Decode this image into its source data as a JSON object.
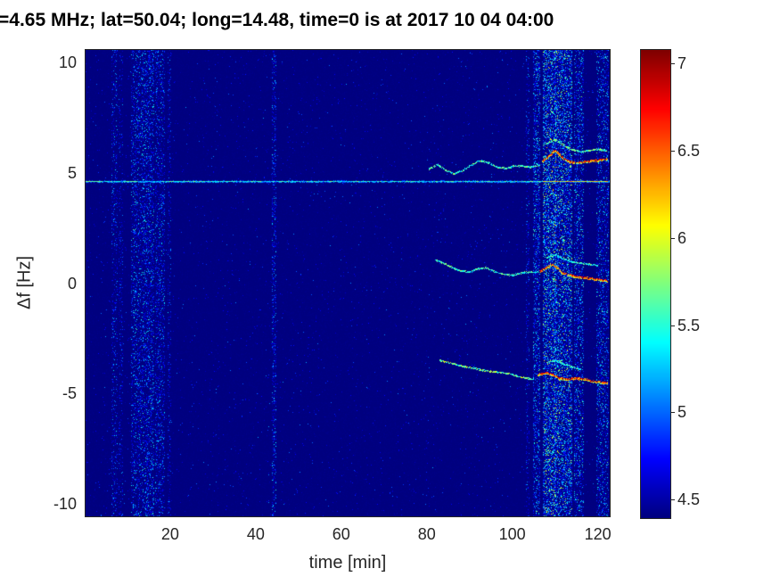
{
  "chart_data": {
    "type": "heatmap",
    "title": "=4.65 MHz;  lat=50.04; long=14.48, time=0 is at 2017 10 04 04:00",
    "xlabel": "time [min]",
    "ylabel": "Δf [Hz]",
    "xlim": [
      0,
      123
    ],
    "ylim": [
      -10.6,
      10.6
    ],
    "xticks": [
      20,
      40,
      60,
      80,
      100,
      120
    ],
    "yticks": [
      10,
      5,
      0,
      -5,
      -10
    ],
    "colormap": "jet",
    "grid": false,
    "legend": "colorbar-right",
    "colorbar": {
      "range": [
        4.4,
        7.08
      ],
      "ticks": [
        7,
        6.5,
        6,
        5.5,
        5,
        4.5
      ]
    },
    "features": {
      "noise": {
        "base": 4.38,
        "jitter": 0.05,
        "speckle_p": 0.012,
        "speckle_vmax": 5.2
      },
      "carrier": {
        "df": 4.62,
        "v0": 5.0,
        "v1": 5.8,
        "bright_t0": 107,
        "bright_t1": 122.3,
        "bright_v": 6.5,
        "start_bright_t": 4,
        "start_bright_v": 5.9
      },
      "bands": [
        {
          "t0": 6.3,
          "t1": 7.3,
          "p": 0.22,
          "vmax": 5.5
        },
        {
          "t0": 8.0,
          "t1": 8.6,
          "p": 0.15,
          "vmax": 5.3
        },
        {
          "t0": 11.0,
          "t1": 13.0,
          "p": 0.3,
          "vmax": 5.7
        },
        {
          "t0": 13.5,
          "t1": 16.0,
          "p": 0.35,
          "vmax": 5.7
        },
        {
          "t0": 16.5,
          "t1": 18.5,
          "p": 0.28,
          "vmax": 5.6
        },
        {
          "t0": 19.5,
          "t1": 20.0,
          "p": 0.18,
          "vmax": 5.4
        },
        {
          "t0": 43.9,
          "t1": 44.5,
          "p": 0.3,
          "vmax": 5.6
        },
        {
          "t0": 103.2,
          "t1": 103.8,
          "p": 0.2,
          "vmax": 5.5
        },
        {
          "t0": 105.0,
          "t1": 106.2,
          "p": 0.4,
          "vmax": 5.9
        },
        {
          "t0": 107.2,
          "t1": 110.0,
          "p": 0.55,
          "vmax": 6.4
        },
        {
          "t0": 110.0,
          "t1": 113.8,
          "p": 0.5,
          "vmax": 6.3
        },
        {
          "t0": 114.5,
          "t1": 116.5,
          "p": 0.35,
          "vmax": 5.9
        },
        {
          "t0": 119.8,
          "t1": 122.3,
          "p": 0.3,
          "vmax": 5.8
        }
      ],
      "traces": [
        {
          "name": "upper-doppler-faint",
          "v": [
            5.2,
            5.9
          ],
          "thick": 1,
          "points": [
            [
              80.5,
              5.15
            ],
            [
              82.5,
              5.35
            ],
            [
              84.5,
              5.1
            ],
            [
              86.5,
              4.95
            ],
            [
              88.5,
              5.1
            ],
            [
              90.5,
              5.35
            ],
            [
              92.5,
              5.55
            ],
            [
              94.5,
              5.45
            ],
            [
              96.5,
              5.25
            ],
            [
              98.5,
              5.2
            ],
            [
              100.5,
              5.3
            ],
            [
              102.5,
              5.3
            ],
            [
              104.5,
              5.25
            ],
            [
              106.5,
              5.35
            ]
          ]
        },
        {
          "name": "upper-doppler-bright",
          "v": [
            6.2,
            7.05
          ],
          "thick": 2,
          "points": [
            [
              107,
              5.5
            ],
            [
              108.5,
              5.75
            ],
            [
              110,
              6.0
            ],
            [
              111,
              5.85
            ],
            [
              112,
              5.65
            ],
            [
              113.5,
              5.5
            ],
            [
              115,
              5.45
            ],
            [
              117,
              5.5
            ],
            [
              119,
              5.55
            ],
            [
              121,
              5.6
            ],
            [
              122.3,
              5.6
            ]
          ]
        },
        {
          "name": "upper-doppler-second",
          "v": [
            5.3,
            6.0
          ],
          "thick": 1,
          "points": [
            [
              108,
              6.3
            ],
            [
              110,
              6.5
            ],
            [
              112,
              6.25
            ],
            [
              114,
              6.05
            ],
            [
              116,
              5.95
            ],
            [
              118,
              6.0
            ],
            [
              120,
              6.05
            ],
            [
              122,
              6.0
            ]
          ]
        },
        {
          "name": "mid-doppler-faint",
          "v": [
            5.2,
            5.9
          ],
          "thick": 1,
          "points": [
            [
              82,
              1.05
            ],
            [
              84,
              0.9
            ],
            [
              86,
              0.7
            ],
            [
              88,
              0.55
            ],
            [
              90,
              0.5
            ],
            [
              92,
              0.65
            ],
            [
              94,
              0.7
            ],
            [
              96,
              0.5
            ],
            [
              98,
              0.4
            ],
            [
              100,
              0.35
            ],
            [
              102,
              0.45
            ],
            [
              104,
              0.5
            ],
            [
              106,
              0.5
            ]
          ]
        },
        {
          "name": "mid-doppler-bright",
          "v": [
            6.2,
            7.05
          ],
          "thick": 2,
          "points": [
            [
              106.5,
              0.55
            ],
            [
              108,
              0.7
            ],
            [
              109.5,
              0.85
            ],
            [
              110.5,
              0.7
            ],
            [
              111.5,
              0.5
            ],
            [
              113,
              0.4
            ],
            [
              115,
              0.3
            ],
            [
              117,
              0.25
            ],
            [
              119,
              0.2
            ],
            [
              121,
              0.15
            ],
            [
              122.3,
              0.1
            ]
          ]
        },
        {
          "name": "mid-doppler-second",
          "v": [
            5.2,
            5.8
          ],
          "thick": 1,
          "points": [
            [
              108,
              1.15
            ],
            [
              110,
              1.3
            ],
            [
              112,
              1.1
            ],
            [
              114,
              0.95
            ],
            [
              116,
              0.9
            ],
            [
              118,
              0.85
            ],
            [
              120,
              0.8
            ]
          ]
        },
        {
          "name": "low-doppler-faint",
          "v": [
            5.3,
            6.1
          ],
          "thick": 1,
          "points": [
            [
              83,
              -3.5
            ],
            [
              85,
              -3.6
            ],
            [
              87,
              -3.7
            ],
            [
              89,
              -3.8
            ],
            [
              91,
              -3.85
            ],
            [
              93,
              -3.95
            ],
            [
              95,
              -4.0
            ],
            [
              97,
              -4.05
            ],
            [
              99,
              -4.1
            ],
            [
              101,
              -4.2
            ],
            [
              103,
              -4.3
            ],
            [
              105,
              -4.35
            ]
          ]
        },
        {
          "name": "low-doppler-bright",
          "v": [
            6.2,
            7.05
          ],
          "thick": 2,
          "points": [
            [
              106,
              -4.15
            ],
            [
              108,
              -4.05
            ],
            [
              109.5,
              -4.15
            ],
            [
              111,
              -4.3
            ],
            [
              113,
              -4.35
            ],
            [
              115,
              -4.3
            ],
            [
              117,
              -4.35
            ],
            [
              119,
              -4.45
            ],
            [
              121,
              -4.5
            ],
            [
              122.3,
              -4.5
            ]
          ]
        },
        {
          "name": "low-doppler-second",
          "v": [
            5.2,
            5.8
          ],
          "thick": 1,
          "points": [
            [
              108,
              -3.6
            ],
            [
              110,
              -3.5
            ],
            [
              112,
              -3.65
            ],
            [
              114,
              -3.8
            ],
            [
              116,
              -3.9
            ]
          ]
        }
      ]
    }
  }
}
